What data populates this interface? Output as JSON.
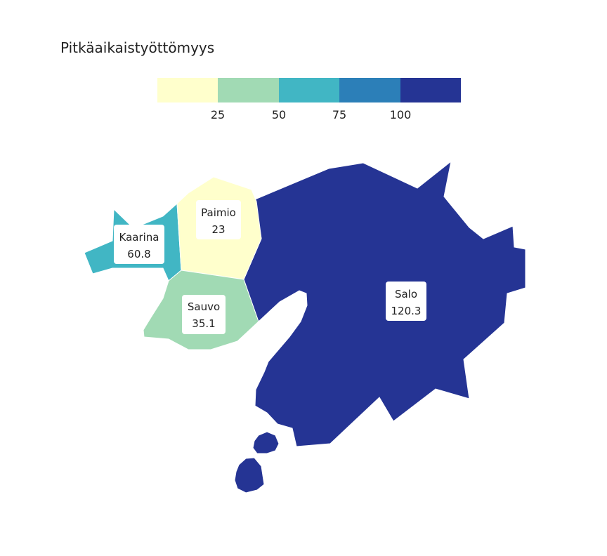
{
  "title": "Pitkäaikaistyöttömyys",
  "legend": {
    "colors": [
      "#ffffcc",
      "#a1dab4",
      "#41b6c4",
      "#2c7fb8",
      "#253494"
    ],
    "ticks": [
      "25",
      "50",
      "75",
      "100"
    ]
  },
  "regions": {
    "salo": {
      "name": "Salo",
      "value": "120.3",
      "color": "#253494"
    },
    "kaarina": {
      "name": "Kaarina",
      "value": "60.8",
      "color": "#41b6c4"
    },
    "paimio": {
      "name": "Paimio",
      "value": "23",
      "color": "#ffffcc"
    },
    "sauvo": {
      "name": "Sauvo",
      "value": "35.1",
      "color": "#a1dab4"
    }
  }
}
